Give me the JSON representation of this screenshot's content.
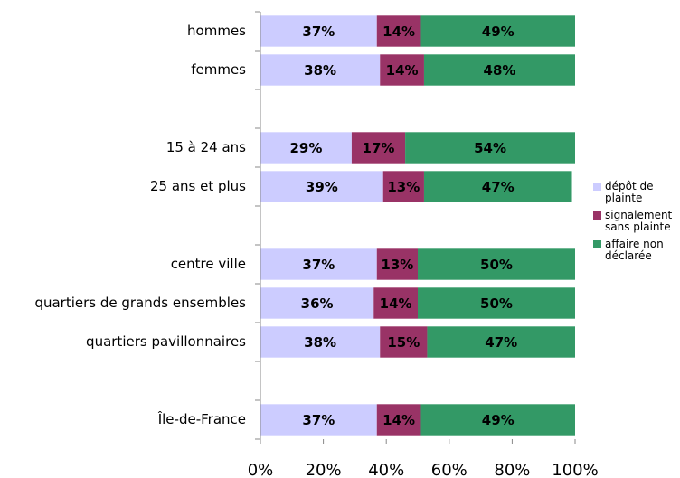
{
  "chart_data": {
    "type": "stacked_bar_horizontal",
    "categories": [
      "hommes",
      "femmes",
      null,
      "15 à 24 ans",
      "25 ans et plus",
      null,
      "centre ville",
      "quartiers de grands ensembles",
      "quartiers pavillonnaires",
      null,
      "Île-de-France"
    ],
    "series": [
      {
        "name": "dépôt de plainte",
        "color": "#ccccff",
        "values": [
          37,
          38,
          null,
          29,
          39,
          null,
          37,
          36,
          38,
          null,
          37
        ],
        "value_labels": [
          "37%",
          "38%",
          null,
          "29%",
          "39%",
          null,
          "37%",
          "36%",
          "38%",
          null,
          "37%"
        ]
      },
      {
        "name": "signalement sans plainte",
        "color": "#993366",
        "values": [
          14,
          14,
          null,
          17,
          13,
          null,
          13,
          14,
          15,
          null,
          14
        ],
        "value_labels": [
          "14%",
          "14%",
          null,
          "17%",
          "13%",
          null,
          "13%",
          "14%",
          "15%",
          null,
          "14%"
        ]
      },
      {
        "name": "affaire non déclarée",
        "color": "#339966",
        "values": [
          49,
          48,
          null,
          54,
          47,
          null,
          50,
          50,
          47,
          null,
          49
        ],
        "value_labels": [
          "49%",
          "48%",
          null,
          "54%",
          "47%",
          null,
          "50%",
          "50%",
          "47%",
          null,
          "49%"
        ]
      }
    ],
    "xlim": [
      0,
      100
    ],
    "xticks": [
      {
        "value": 0,
        "label": "0%"
      },
      {
        "value": 20,
        "label": "20%"
      },
      {
        "value": 40,
        "label": "40%"
      },
      {
        "value": 60,
        "label": "60%"
      },
      {
        "value": 80,
        "label": "80%"
      },
      {
        "value": 100,
        "label": "100%"
      }
    ],
    "legend": "right"
  }
}
